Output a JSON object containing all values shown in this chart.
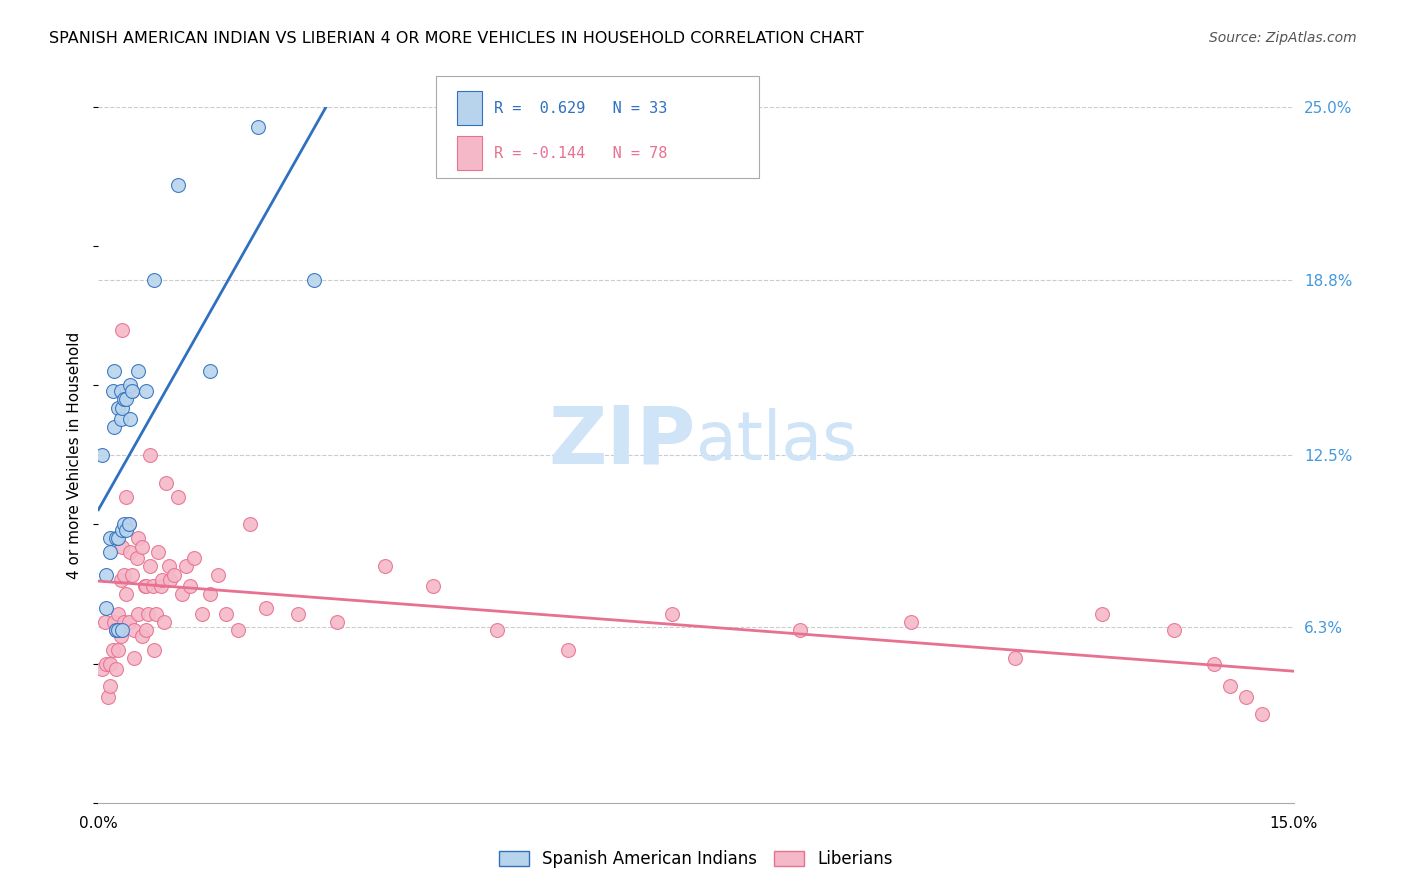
{
  "title": "SPANISH AMERICAN INDIAN VS LIBERIAN 4 OR MORE VEHICLES IN HOUSEHOLD CORRELATION CHART",
  "source": "Source: ZipAtlas.com",
  "ylabel": "4 or more Vehicles in Household",
  "xmin": 0.0,
  "xmax": 0.15,
  "ymin": 0.0,
  "ymax": 0.25,
  "xticks": [
    0.0,
    0.025,
    0.05,
    0.075,
    0.1,
    0.125,
    0.15
  ],
  "xticklabels": [
    "0.0%",
    "",
    "",
    "",
    "",
    "",
    "15.0%"
  ],
  "ytick_labels_right": [
    "25.0%",
    "18.8%",
    "12.5%",
    "6.3%"
  ],
  "ytick_values_right": [
    0.25,
    0.188,
    0.125,
    0.063
  ],
  "legend_r1": "R =  0.629   N = 33",
  "legend_r2": "R = -0.144   N = 78",
  "legend_label1": "Spanish American Indians",
  "legend_label2": "Liberians",
  "blue_color": "#b8d4ed",
  "pink_color": "#f5b8c8",
  "blue_line_color": "#3070c0",
  "pink_line_color": "#e87090",
  "watermark_zip": "ZIP",
  "watermark_atlas": "atlas",
  "watermark_color": "#d0e4f8",
  "blue_dots_x": [
    0.0005,
    0.001,
    0.001,
    0.0015,
    0.0015,
    0.0018,
    0.002,
    0.002,
    0.0022,
    0.0022,
    0.0025,
    0.0025,
    0.0025,
    0.0028,
    0.0028,
    0.003,
    0.003,
    0.003,
    0.0032,
    0.0032,
    0.0035,
    0.0035,
    0.0038,
    0.004,
    0.004,
    0.0042,
    0.005,
    0.006,
    0.007,
    0.01,
    0.014,
    0.02,
    0.027
  ],
  "blue_dots_y": [
    0.125,
    0.082,
    0.07,
    0.095,
    0.09,
    0.148,
    0.155,
    0.135,
    0.095,
    0.062,
    0.142,
    0.095,
    0.062,
    0.148,
    0.138,
    0.142,
    0.098,
    0.062,
    0.145,
    0.1,
    0.145,
    0.098,
    0.1,
    0.15,
    0.138,
    0.148,
    0.155,
    0.148,
    0.188,
    0.222,
    0.155,
    0.243,
    0.188
  ],
  "pink_dots_x": [
    0.0005,
    0.0008,
    0.001,
    0.0012,
    0.0015,
    0.0015,
    0.0018,
    0.002,
    0.0022,
    0.0022,
    0.0025,
    0.0025,
    0.0028,
    0.0028,
    0.003,
    0.003,
    0.0032,
    0.0032,
    0.0035,
    0.0035,
    0.0035,
    0.0038,
    0.0038,
    0.004,
    0.0042,
    0.0042,
    0.0045,
    0.0045,
    0.0048,
    0.005,
    0.005,
    0.0055,
    0.0055,
    0.0058,
    0.006,
    0.006,
    0.0062,
    0.0065,
    0.0065,
    0.0068,
    0.007,
    0.0072,
    0.0075,
    0.0078,
    0.008,
    0.0082,
    0.0085,
    0.0088,
    0.009,
    0.0095,
    0.01,
    0.0105,
    0.011,
    0.0115,
    0.012,
    0.013,
    0.014,
    0.015,
    0.016,
    0.0175,
    0.019,
    0.021,
    0.025,
    0.03,
    0.036,
    0.042,
    0.05,
    0.059,
    0.072,
    0.088,
    0.102,
    0.115,
    0.126,
    0.135,
    0.14,
    0.142,
    0.144,
    0.146
  ],
  "pink_dots_y": [
    0.048,
    0.065,
    0.05,
    0.038,
    0.05,
    0.042,
    0.055,
    0.065,
    0.062,
    0.048,
    0.068,
    0.055,
    0.08,
    0.06,
    0.17,
    0.092,
    0.082,
    0.065,
    0.148,
    0.11,
    0.075,
    0.1,
    0.065,
    0.09,
    0.148,
    0.082,
    0.062,
    0.052,
    0.088,
    0.095,
    0.068,
    0.092,
    0.06,
    0.078,
    0.078,
    0.062,
    0.068,
    0.125,
    0.085,
    0.078,
    0.055,
    0.068,
    0.09,
    0.078,
    0.08,
    0.065,
    0.115,
    0.085,
    0.08,
    0.082,
    0.11,
    0.075,
    0.085,
    0.078,
    0.088,
    0.068,
    0.075,
    0.082,
    0.068,
    0.062,
    0.1,
    0.07,
    0.068,
    0.065,
    0.085,
    0.078,
    0.062,
    0.055,
    0.068,
    0.062,
    0.065,
    0.052,
    0.068,
    0.062,
    0.05,
    0.042,
    0.038,
    0.032
  ]
}
